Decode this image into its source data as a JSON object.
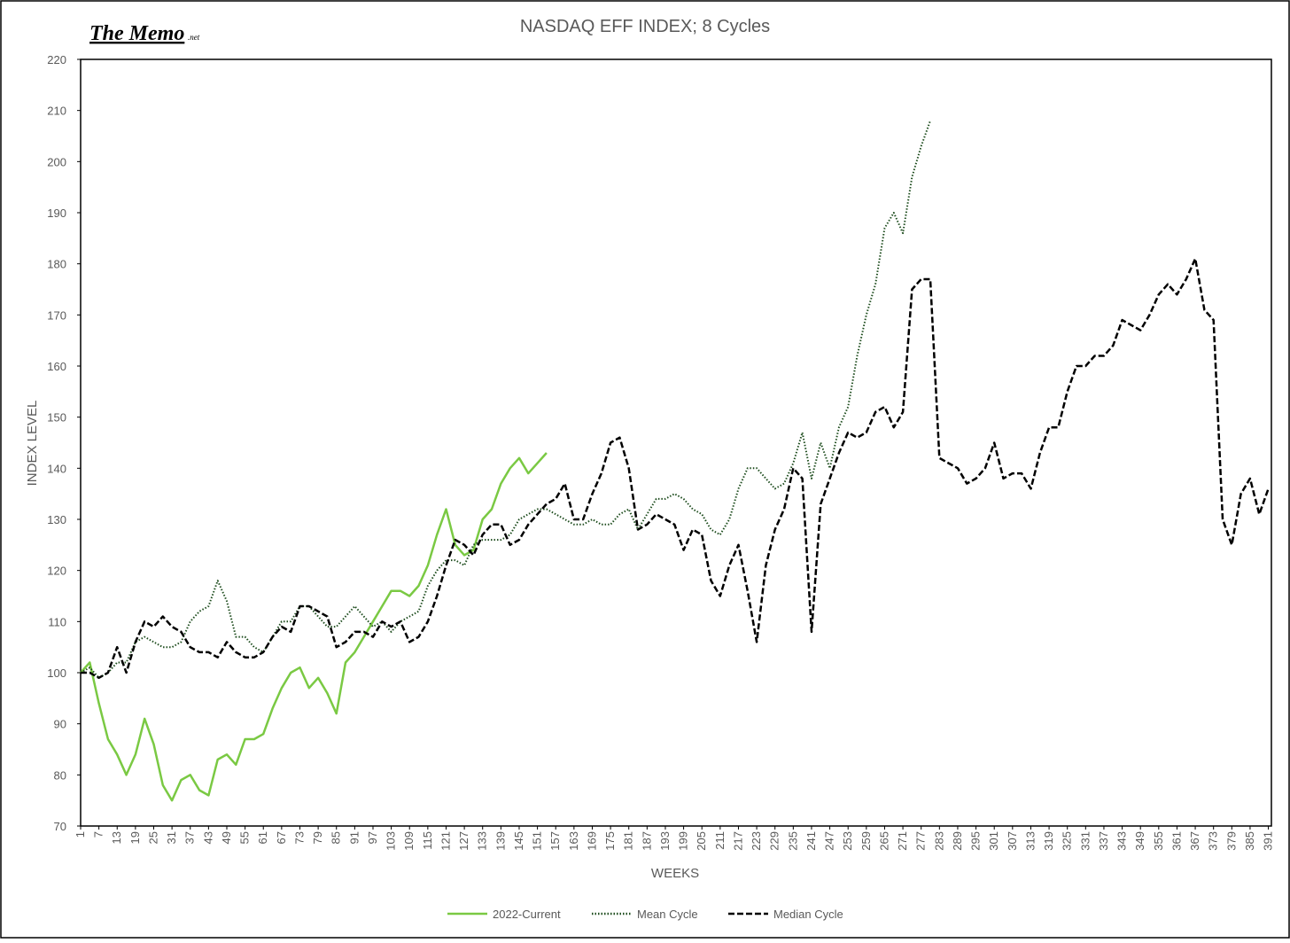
{
  "chart_data": {
    "type": "line",
    "title": "NASDAQ EFF INDEX; 8 Cycles",
    "logo": "The Memo",
    "logo_suffix": ".net",
    "xlabel": "WEEKS",
    "ylabel": "INDEX LEVEL",
    "xlim": [
      1,
      392
    ],
    "ylim": [
      70,
      220
    ],
    "yticks": [
      70,
      80,
      90,
      100,
      110,
      120,
      130,
      140,
      150,
      160,
      170,
      180,
      190,
      200,
      210,
      220
    ],
    "xticks": [
      1,
      7,
      13,
      19,
      25,
      31,
      37,
      43,
      49,
      55,
      61,
      67,
      73,
      79,
      85,
      91,
      97,
      103,
      109,
      115,
      121,
      127,
      133,
      139,
      145,
      151,
      157,
      163,
      169,
      175,
      181,
      187,
      193,
      199,
      205,
      211,
      217,
      223,
      229,
      235,
      241,
      247,
      253,
      259,
      265,
      271,
      277,
      283,
      289,
      295,
      301,
      307,
      313,
      319,
      325,
      331,
      337,
      343,
      349,
      355,
      361,
      367,
      373,
      379,
      385,
      391
    ],
    "legend": "bottom",
    "x": [
      1,
      4,
      7,
      10,
      13,
      16,
      19,
      22,
      25,
      28,
      31,
      34,
      37,
      40,
      43,
      46,
      49,
      52,
      55,
      58,
      61,
      64,
      67,
      70,
      73,
      76,
      79,
      82,
      85,
      88,
      91,
      94,
      97,
      100,
      103,
      106,
      109,
      112,
      115,
      118,
      121,
      124,
      127,
      130,
      133,
      136,
      139,
      142,
      145,
      148,
      151,
      154,
      157,
      160,
      163,
      166,
      169,
      172,
      175,
      178,
      181,
      184,
      187,
      190,
      193,
      196,
      199,
      202,
      205,
      208,
      211,
      214,
      217,
      220,
      223,
      226,
      229,
      232,
      235,
      238,
      241,
      244,
      247,
      250,
      253,
      256,
      259,
      262,
      265,
      268,
      271,
      274,
      277,
      280,
      283,
      286,
      289,
      292,
      295,
      298,
      301,
      304,
      307,
      310,
      313,
      316,
      319,
      322,
      325,
      328,
      331,
      334,
      337,
      340,
      343,
      346,
      349,
      352,
      355,
      358,
      361,
      364,
      367,
      370,
      373,
      376,
      379,
      382,
      385,
      388,
      391
    ],
    "series": [
      {
        "name": "2022-Current",
        "color": "#7ac943",
        "line_style": "solid",
        "values": [
          100,
          102,
          94,
          87,
          84,
          80,
          84,
          91,
          86,
          78,
          75,
          79,
          80,
          77,
          76,
          83,
          84,
          82,
          87,
          87,
          88,
          93,
          97,
          100,
          101,
          97,
          99,
          96,
          92,
          102,
          104,
          107,
          110,
          113,
          116,
          116,
          115,
          117,
          121,
          127,
          132,
          125,
          123,
          124,
          130,
          132,
          137,
          140,
          142,
          139,
          141,
          143,
          null,
          null,
          null,
          null,
          null,
          null,
          null,
          null,
          null,
          null,
          null,
          null,
          null,
          null,
          null,
          null,
          null,
          null,
          null,
          null,
          null,
          null,
          null,
          null,
          null,
          null,
          null,
          null,
          null,
          null,
          null,
          null,
          null,
          null,
          null,
          null,
          null,
          null,
          null,
          null,
          null,
          null,
          null,
          null,
          null,
          null,
          null,
          null,
          null,
          null,
          null,
          null,
          null,
          null,
          null,
          null,
          null,
          null,
          null,
          null,
          null,
          null,
          null,
          null,
          null,
          null,
          null,
          null,
          null,
          null,
          null,
          null,
          null,
          null,
          null,
          null,
          null,
          null,
          null
        ]
      },
      {
        "name": "Mean Cycle",
        "color": "#1e4d1e",
        "line_style": "dotted",
        "values": [
          100,
          101,
          99,
          100,
          102,
          102,
          106,
          107,
          106,
          105,
          105,
          106,
          110,
          112,
          113,
          118,
          114,
          107,
          107,
          105,
          104,
          107,
          110,
          110,
          113,
          113,
          111,
          109,
          109,
          111,
          113,
          111,
          109,
          110,
          108,
          110,
          111,
          112,
          117,
          120,
          122,
          122,
          121,
          125,
          126,
          126,
          126,
          127,
          130,
          131,
          132,
          132,
          131,
          130,
          129,
          129,
          130,
          129,
          129,
          131,
          132,
          128,
          131,
          134,
          134,
          135,
          134,
          132,
          131,
          128,
          127,
          130,
          136,
          140,
          140,
          138,
          136,
          137,
          141,
          147,
          138,
          145,
          140,
          148,
          152,
          162,
          170,
          176,
          187,
          190,
          186,
          197,
          203,
          208,
          null,
          null,
          null,
          null,
          null,
          null,
          null,
          null,
          null,
          null,
          null,
          null,
          null,
          null,
          null,
          null,
          null,
          null,
          null,
          null,
          null,
          null,
          null,
          null,
          null,
          null,
          null,
          null,
          null,
          null,
          null,
          null,
          null,
          null,
          null,
          null,
          null
        ]
      },
      {
        "name": "Median Cycle",
        "color": "#000000",
        "line_style": "dashed",
        "values": [
          100,
          100,
          99,
          100,
          105,
          100,
          106,
          110,
          109,
          111,
          109,
          108,
          105,
          104,
          104,
          103,
          106,
          104,
          103,
          103,
          104,
          107,
          109,
          108,
          113,
          113,
          112,
          111,
          105,
          106,
          108,
          108,
          107,
          110,
          109,
          110,
          106,
          107,
          110,
          115,
          121,
          126,
          125,
          123,
          127,
          129,
          129,
          125,
          126,
          129,
          131,
          133,
          134,
          137,
          130,
          130,
          135,
          139,
          145,
          146,
          140,
          128,
          129,
          131,
          130,
          129,
          124,
          128,
          127,
          118,
          115,
          121,
          125,
          116,
          106,
          121,
          128,
          132,
          140,
          138,
          108,
          133,
          138,
          143,
          147,
          146,
          147,
          151,
          152,
          148,
          151,
          175,
          177,
          177,
          142,
          141,
          140,
          137,
          138,
          140,
          145,
          138,
          139,
          139,
          136,
          143,
          148,
          148,
          155,
          160,
          160,
          162,
          162,
          164,
          169,
          168,
          167,
          170,
          174,
          176,
          174,
          177,
          181,
          171,
          169,
          130,
          125,
          135,
          138,
          131,
          136
        ]
      }
    ]
  }
}
